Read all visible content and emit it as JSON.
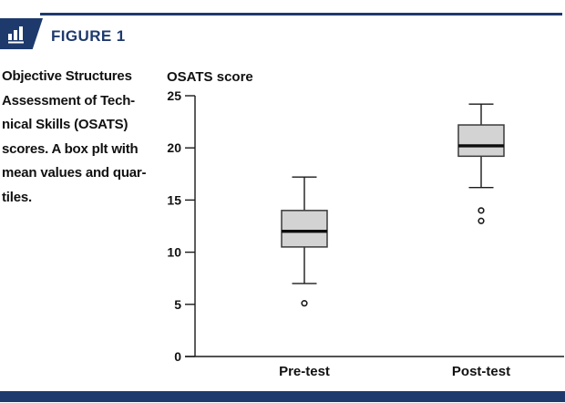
{
  "colors": {
    "navy": "#1e3a6d",
    "box_fill": "#d3d3d3",
    "line": "#1a1a1a"
  },
  "header": {
    "figure_label": "FIGURE 1",
    "icon": "bar-chart-icon"
  },
  "caption": {
    "lines": [
      "Objective Structures",
      "Assessment of Tech-",
      "nical Skills (OSATS)",
      "scores. A box plt with",
      "mean values and quar-",
      "tiles."
    ]
  },
  "chart_data": {
    "type": "box",
    "title": "OSATS score",
    "categories": [
      "Pre-test",
      "Post-test"
    ],
    "ylim": [
      0,
      25
    ],
    "yticks": [
      0,
      5,
      10,
      15,
      20,
      25
    ],
    "grid": false,
    "series": [
      {
        "name": "Pre-test",
        "min": 7.0,
        "q1": 10.5,
        "median": 12.0,
        "q3": 14.0,
        "max": 17.2,
        "outliers": [
          5.1
        ]
      },
      {
        "name": "Post-test",
        "min": 16.2,
        "q1": 19.2,
        "median": 20.2,
        "q3": 22.2,
        "max": 24.2,
        "outliers": [
          14.0,
          13.0
        ]
      }
    ]
  }
}
